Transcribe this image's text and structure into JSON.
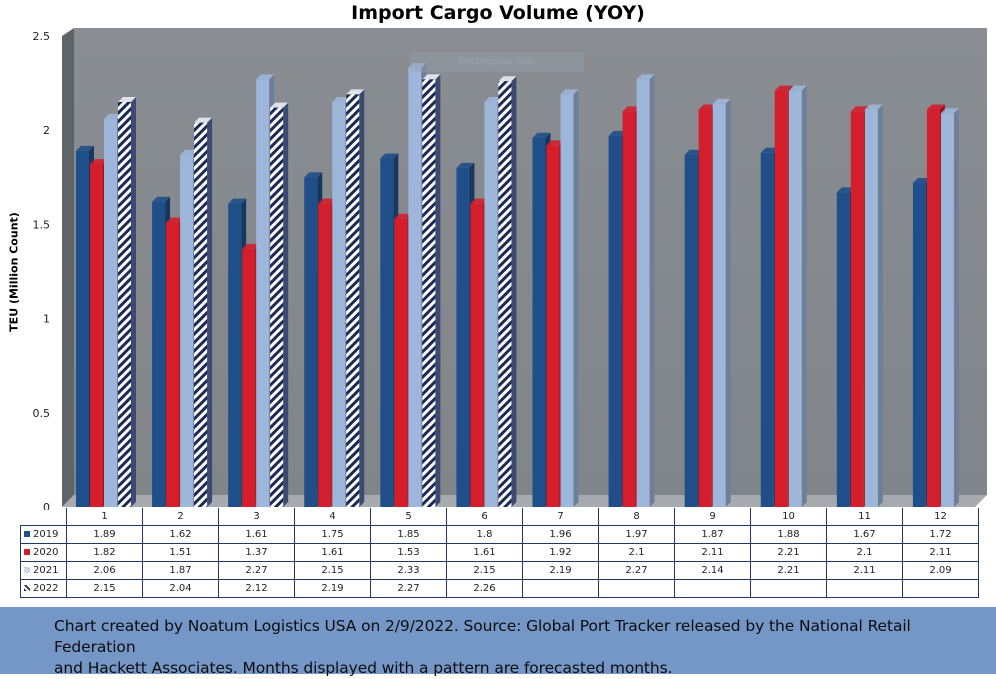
{
  "chart_data": {
    "type": "bar",
    "title": "Import Cargo Volume (YOY)",
    "ylabel": "TEU (Million Count)",
    "xlabel": "",
    "ylim": [
      0,
      2.5
    ],
    "yticks": [
      "0",
      "0.5",
      "1",
      "1.5",
      "2",
      "2.5"
    ],
    "categories": [
      "1",
      "2",
      "3",
      "4",
      "5",
      "6",
      "7",
      "8",
      "9",
      "10",
      "11",
      "12"
    ],
    "series": [
      {
        "name": "2019",
        "color": "#1f4e89",
        "pattern": "solid",
        "values": [
          1.89,
          1.62,
          1.61,
          1.75,
          1.85,
          1.8,
          1.96,
          1.97,
          1.87,
          1.88,
          1.67,
          1.72
        ],
        "labels": [
          "1.89",
          "1.62",
          "1.61",
          "1.75",
          "1.85",
          "1.8",
          "1.96",
          "1.97",
          "1.87",
          "1.88",
          "1.67",
          "1.72"
        ]
      },
      {
        "name": "2020",
        "color": "#d41e2c",
        "pattern": "solid",
        "values": [
          1.82,
          1.51,
          1.37,
          1.61,
          1.53,
          1.61,
          1.92,
          2.1,
          2.11,
          2.21,
          2.1,
          2.11
        ],
        "labels": [
          "1.82",
          "1.51",
          "1.37",
          "1.61",
          "1.53",
          "1.61",
          "1.92",
          "2.1",
          "2.11",
          "2.21",
          "2.1",
          "2.11"
        ]
      },
      {
        "name": "2021",
        "color": "#9db6da",
        "pattern": "solid-forecast",
        "values": [
          2.06,
          1.87,
          2.27,
          2.15,
          2.33,
          2.15,
          2.19,
          2.27,
          2.14,
          2.21,
          2.11,
          2.09
        ],
        "labels": [
          "2.06",
          "1.87",
          "2.27",
          "2.15",
          "2.33",
          "2.15",
          "2.19",
          "2.27",
          "2.14",
          "2.21",
          "2.11",
          "2.09"
        ]
      },
      {
        "name": "2022",
        "color": "#1a2a55",
        "pattern": "diagonal-stripes",
        "values": [
          2.15,
          2.04,
          2.12,
          2.19,
          2.27,
          2.26,
          null,
          null,
          null,
          null,
          null,
          null
        ],
        "labels": [
          "2.15",
          "2.04",
          "2.12",
          "2.19",
          "2.27",
          "2.26",
          "",
          "",
          "",
          "",
          "",
          ""
        ]
      }
    ],
    "legend_placement": "data-table",
    "grid": false
  },
  "overlay": {
    "text": "Rectangular Snip"
  },
  "footer": {
    "line1": "Chart created by Noatum Logistics USA on 2/9/2022. Source: Global Port Tracker released by the National Retail Federation",
    "line2": "and Hackett Associates. Months displayed with a pattern are forecasted months."
  }
}
